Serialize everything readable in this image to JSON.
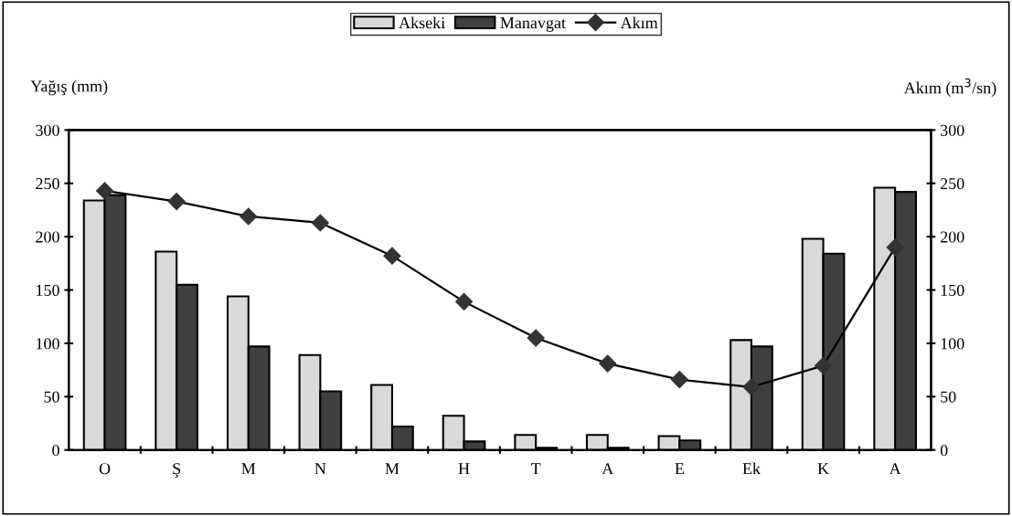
{
  "chart_data": {
    "type": "bar",
    "ylabel": "Yağış (mm)",
    "y2label": "Akım (m$^{3}$/sn)",
    "categories": [
      "O",
      "Ş",
      "M",
      "N",
      "M",
      "H",
      "T",
      "A",
      "E",
      "Ek",
      "K",
      "A"
    ],
    "series": [
      {
        "name": "Akseki",
        "color": "#d9d9d9",
        "values": [
          234,
          186,
          144,
          89,
          61,
          32,
          14,
          14,
          13,
          103,
          198,
          246
        ]
      },
      {
        "name": "Manavgat",
        "color": "#404040",
        "values": [
          239,
          155,
          97,
          55,
          22,
          8,
          2,
          2,
          9,
          97,
          184,
          242
        ]
      },
      {
        "name": "Akım",
        "type": "line",
        "axis": "y2",
        "color": "#000000",
        "marker": "diamond",
        "values": [
          243,
          233,
          219,
          213,
          182,
          139,
          105,
          81,
          66,
          59,
          79,
          190
        ]
      }
    ],
    "ylim": [
      0,
      300
    ],
    "yticks": [
      0,
      50,
      100,
      150,
      200,
      250,
      300
    ],
    "y2lim": [
      0,
      300
    ],
    "y2ticks": [
      0,
      50,
      100,
      150,
      200,
      250,
      300
    ],
    "legend": "top",
    "grid": false
  }
}
